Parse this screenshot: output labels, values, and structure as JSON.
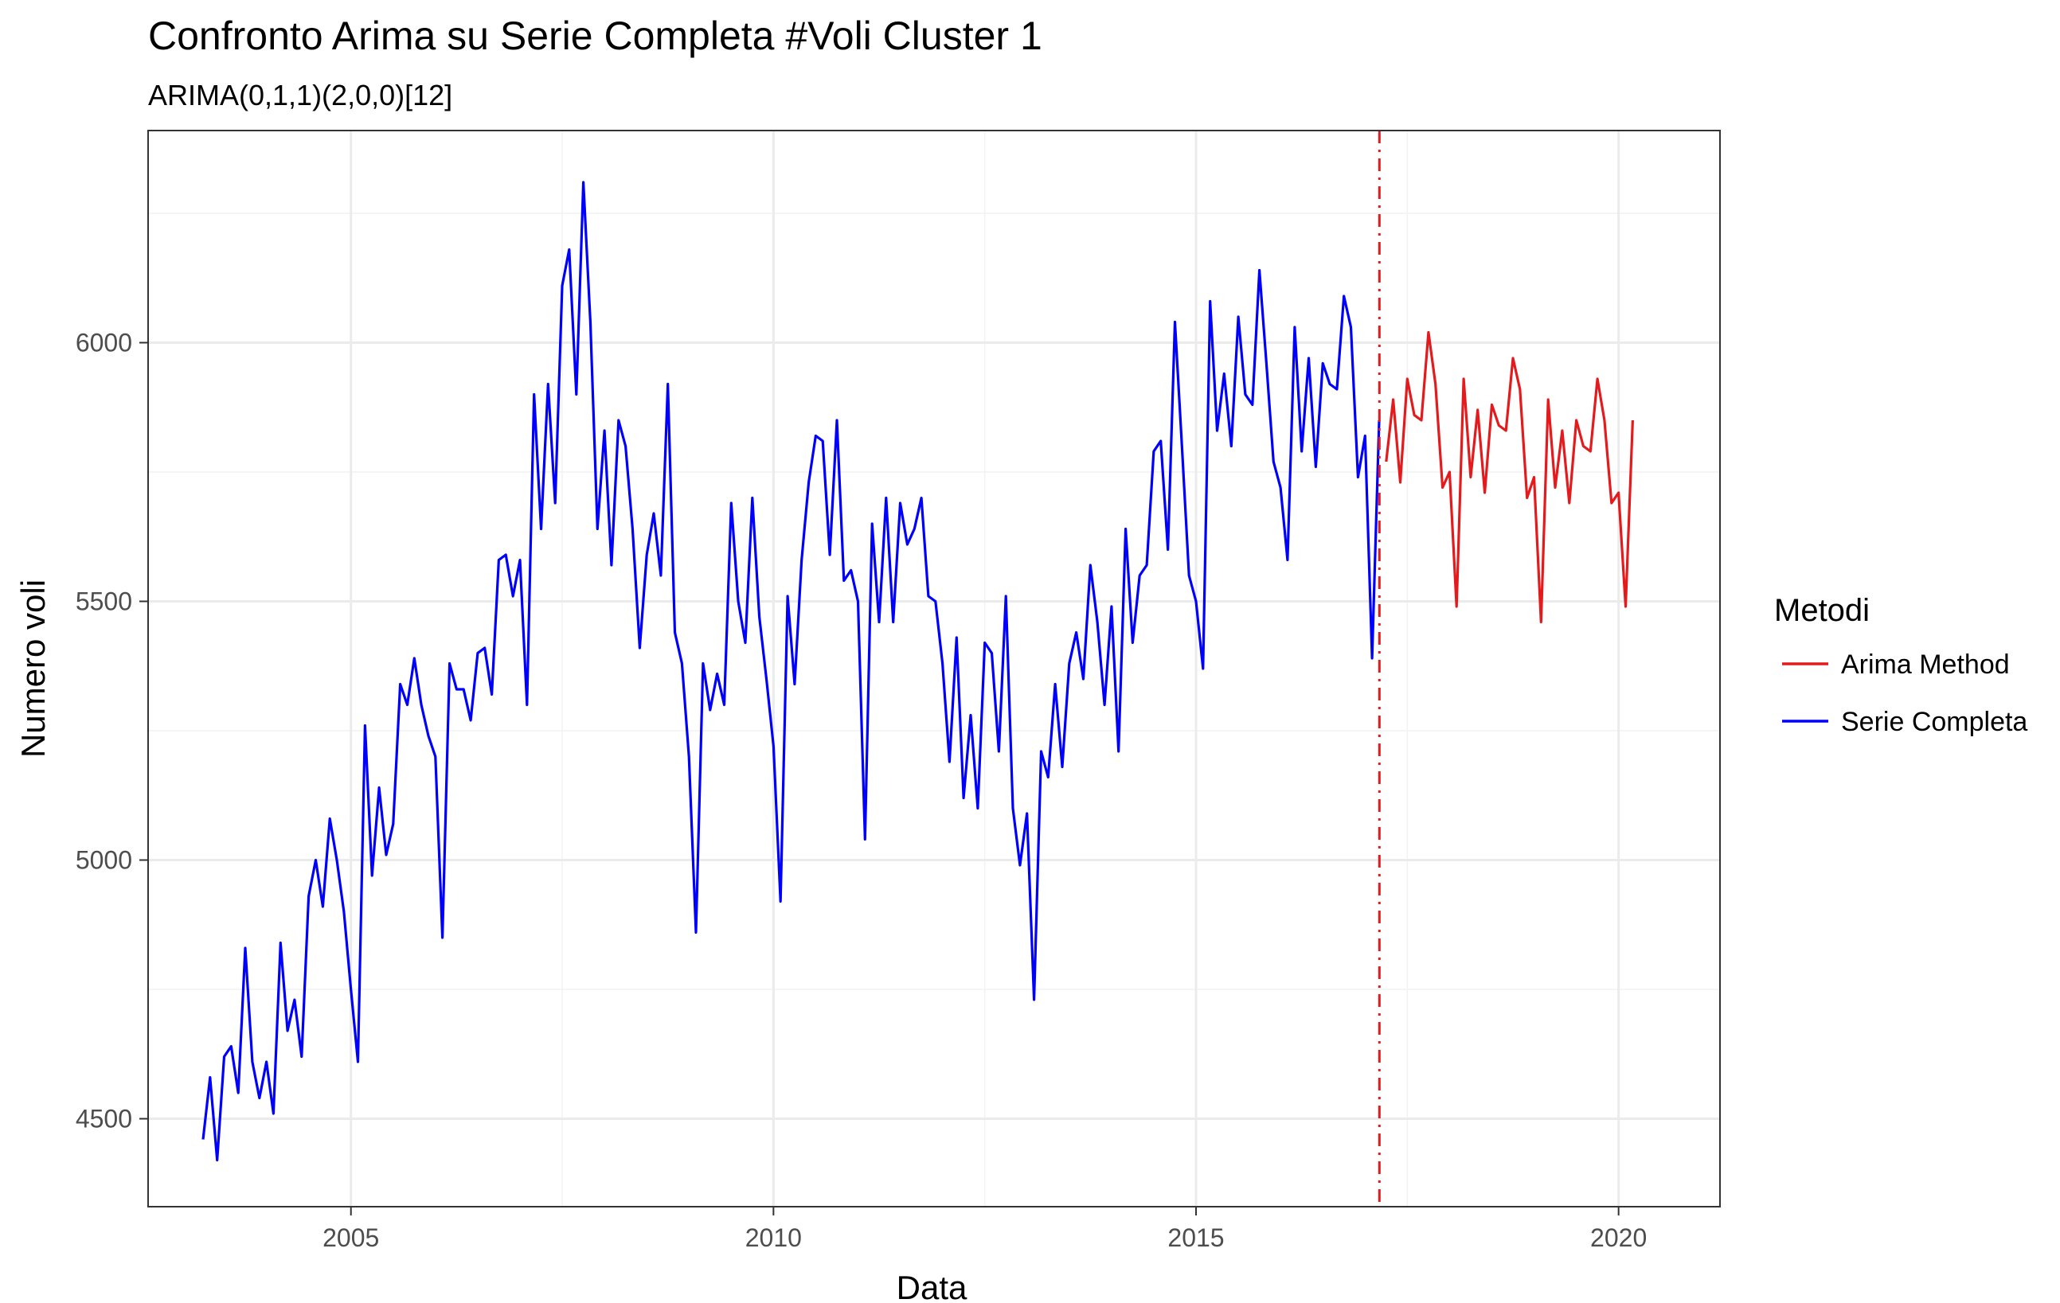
{
  "chart_data": {
    "type": "line",
    "title": "Confronto Arima su Serie Completa #Voli Cluster  1",
    "subtitle": "ARIMA(0,1,1)(2,0,0)[12]",
    "xlabel": "Data",
    "ylabel": "Numero voli",
    "xlim": [
      2002.6,
      2021.2
    ],
    "ylim": [
      4330,
      6410
    ],
    "x_ticks": [
      2005,
      2010,
      2015,
      2020
    ],
    "x_tick_labels": [
      "2005",
      "2010",
      "2015",
      "2020"
    ],
    "y_ticks": [
      4500,
      5000,
      5500,
      6000
    ],
    "y_tick_labels": [
      "4500",
      "5000",
      "5500",
      "6000"
    ],
    "grid": true,
    "legend_position": "right",
    "legend_title": "Metodi",
    "split_line": {
      "x": 2017.17,
      "color": "#e41a1c",
      "style": "dotdash"
    },
    "series": [
      {
        "name": "Arima Method",
        "color": "#e41a1c",
        "x": [
          2017.25,
          2017.333,
          2017.417,
          2017.5,
          2017.583,
          2017.667,
          2017.75,
          2017.833,
          2017.917,
          2018.0,
          2018.083,
          2018.167,
          2018.25,
          2018.333,
          2018.417,
          2018.5,
          2018.583,
          2018.667,
          2018.75,
          2018.833,
          2018.917,
          2019.0,
          2019.083,
          2019.167,
          2019.25,
          2019.333,
          2019.417,
          2019.5,
          2019.583,
          2019.667,
          2019.75,
          2019.833,
          2019.917,
          2020.0,
          2020.083,
          2020.167
        ],
        "values": [
          5770,
          5890,
          5730,
          5930,
          5860,
          5850,
          6020,
          5920,
          5720,
          5750,
          5490,
          5930,
          5740,
          5870,
          5710,
          5880,
          5840,
          5830,
          5970,
          5910,
          5700,
          5740,
          5460,
          5890,
          5720,
          5830,
          5690,
          5850,
          5800,
          5790,
          5930,
          5850,
          5690,
          5710,
          5490,
          5850
        ]
      },
      {
        "name": "Serie Completa",
        "color": "#0000ff",
        "x": [
          2003.25,
          2003.333,
          2003.417,
          2003.5,
          2003.583,
          2003.667,
          2003.75,
          2003.833,
          2003.917,
          2004.0,
          2004.083,
          2004.167,
          2004.25,
          2004.333,
          2004.417,
          2004.5,
          2004.583,
          2004.667,
          2004.75,
          2004.833,
          2004.917,
          2005.0,
          2005.083,
          2005.167,
          2005.25,
          2005.333,
          2005.417,
          2005.5,
          2005.583,
          2005.667,
          2005.75,
          2005.833,
          2005.917,
          2006.0,
          2006.083,
          2006.167,
          2006.25,
          2006.333,
          2006.417,
          2006.5,
          2006.583,
          2006.667,
          2006.75,
          2006.833,
          2006.917,
          2007.0,
          2007.083,
          2007.167,
          2007.25,
          2007.333,
          2007.417,
          2007.5,
          2007.583,
          2007.667,
          2007.75,
          2007.833,
          2007.917,
          2008.0,
          2008.083,
          2008.167,
          2008.25,
          2008.333,
          2008.417,
          2008.5,
          2008.583,
          2008.667,
          2008.75,
          2008.833,
          2008.917,
          2009.0,
          2009.083,
          2009.167,
          2009.25,
          2009.333,
          2009.417,
          2009.5,
          2009.583,
          2009.667,
          2009.75,
          2009.833,
          2009.917,
          2010.0,
          2010.083,
          2010.167,
          2010.25,
          2010.333,
          2010.417,
          2010.5,
          2010.583,
          2010.667,
          2010.75,
          2010.833,
          2010.917,
          2011.0,
          2011.083,
          2011.167,
          2011.25,
          2011.333,
          2011.417,
          2011.5,
          2011.583,
          2011.667,
          2011.75,
          2011.833,
          2011.917,
          2012.0,
          2012.083,
          2012.167,
          2012.25,
          2012.333,
          2012.417,
          2012.5,
          2012.583,
          2012.667,
          2012.75,
          2012.833,
          2012.917,
          2013.0,
          2013.083,
          2013.167,
          2013.25,
          2013.333,
          2013.417,
          2013.5,
          2013.583,
          2013.667,
          2013.75,
          2013.833,
          2013.917,
          2014.0,
          2014.083,
          2014.167,
          2014.25,
          2014.333,
          2014.417,
          2014.5,
          2014.583,
          2014.667,
          2014.75,
          2014.833,
          2014.917,
          2015.0,
          2015.083,
          2015.167,
          2015.25,
          2015.333,
          2015.417,
          2015.5,
          2015.583,
          2015.667,
          2015.75,
          2015.833,
          2015.917,
          2016.0,
          2016.083,
          2016.167,
          2016.25,
          2016.333,
          2016.417,
          2016.5,
          2016.583,
          2016.667,
          2016.75,
          2016.833,
          2016.917,
          2017.0,
          2017.083,
          2017.167
        ],
        "values": [
          4460,
          4580,
          4420,
          4620,
          4640,
          4550,
          4830,
          4610,
          4540,
          4610,
          4510,
          4840,
          4670,
          4730,
          4620,
          4930,
          5000,
          4910,
          5080,
          5000,
          4900,
          4750,
          4610,
          5260,
          4970,
          5140,
          5010,
          5070,
          5340,
          5300,
          5390,
          5300,
          5240,
          5200,
          4850,
          5380,
          5330,
          5330,
          5270,
          5400,
          5410,
          5320,
          5580,
          5590,
          5510,
          5580,
          5300,
          5900,
          5640,
          5920,
          5690,
          6110,
          6180,
          5900,
          6310,
          6040,
          5640,
          5830,
          5570,
          5850,
          5800,
          5640,
          5410,
          5590,
          5670,
          5550,
          5920,
          5440,
          5380,
          5200,
          4860,
          5380,
          5290,
          5360,
          5300,
          5690,
          5500,
          5420,
          5700,
          5470,
          5350,
          5220,
          4920,
          5510,
          5340,
          5580,
          5730,
          5820,
          5810,
          5590,
          5850,
          5540,
          5560,
          5500,
          5040,
          5650,
          5460,
          5700,
          5460,
          5690,
          5610,
          5640,
          5700,
          5510,
          5500,
          5380,
          5190,
          5430,
          5120,
          5280,
          5100,
          5420,
          5400,
          5210,
          5510,
          5100,
          4990,
          5090,
          4730,
          5210,
          5160,
          5340,
          5180,
          5380,
          5440,
          5350,
          5570,
          5460,
          5300,
          5490,
          5210,
          5640,
          5420,
          5550,
          5570,
          5790,
          5810,
          5600,
          6040,
          5800,
          5550,
          5500,
          5370,
          6080,
          5830,
          5940,
          5800,
          6050,
          5900,
          5880,
          6140,
          5960,
          5770,
          5720,
          5580,
          6030,
          5790,
          5970,
          5760,
          5960,
          5920,
          5910,
          6090,
          6030,
          5740,
          5820,
          5390,
          5850
        ]
      }
    ]
  }
}
